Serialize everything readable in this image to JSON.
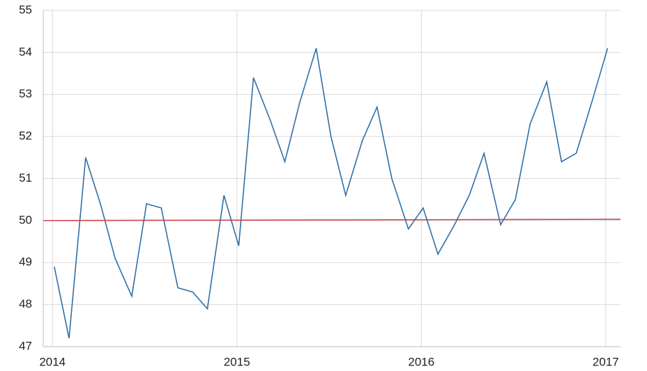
{
  "chart_data": {
    "type": "line",
    "xlim": [
      2013.95,
      2017.08
    ],
    "xticks": [
      2014,
      2015,
      2016,
      2017
    ],
    "ylim": [
      47,
      55
    ],
    "yticks": [
      47,
      48,
      49,
      50,
      51,
      52,
      53,
      54,
      55
    ],
    "grid": true,
    "series": [
      {
        "color": "#2e6fa7",
        "x": [
          2014.01,
          2014.09,
          2014.18,
          2014.26,
          2014.34,
          2014.43,
          2014.51,
          2014.59,
          2014.68,
          2014.76,
          2014.84,
          2014.93,
          2015.01,
          2015.09,
          2015.18,
          2015.26,
          2015.34,
          2015.43,
          2015.51,
          2015.59,
          2015.68,
          2015.76,
          2015.84,
          2015.93,
          2016.01,
          2016.09,
          2016.18,
          2016.26,
          2016.34,
          2016.43,
          2016.51,
          2016.59,
          2016.68,
          2016.76,
          2016.84,
          2016.93,
          2017.01
        ],
        "values": [
          48.9,
          47.2,
          51.5,
          50.4,
          49.1,
          48.2,
          50.4,
          50.3,
          48.4,
          48.3,
          47.9,
          50.6,
          49.4,
          53.4,
          52.4,
          51.4,
          52.8,
          54.1,
          52.0,
          50.6,
          51.9,
          52.7,
          51.0,
          49.8,
          50.3,
          49.2,
          49.9,
          50.6,
          51.6,
          49.9,
          50.5,
          52.3,
          53.3,
          51.4,
          51.6,
          52.9,
          54.1
        ]
      },
      {
        "color": "#d0434a",
        "x": [
          2013.95,
          2017.08
        ],
        "values": [
          50.0,
          50.03
        ]
      }
    ]
  }
}
